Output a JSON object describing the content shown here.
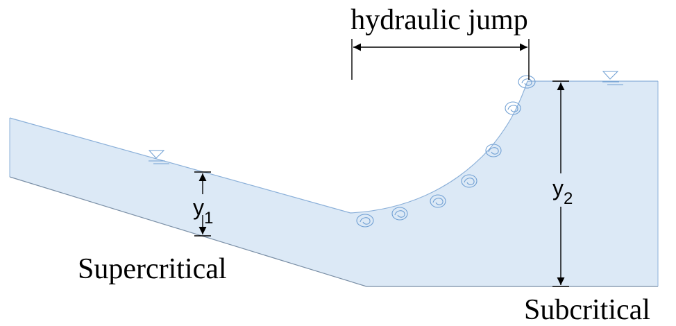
{
  "diagram": {
    "labels": {
      "hydraulic_jump": "hydraulic jump",
      "supercritical": "Supercritical",
      "subcritical": "Subcritical",
      "y1_base": "y",
      "y1_sub": "1",
      "y2_base": "y",
      "y2_sub": "2"
    },
    "colors": {
      "water_fill": "#dce9f6",
      "water_edge": "#8bb0d9",
      "line": "#000000",
      "symbol": "#6f9fd3"
    },
    "icons": {
      "water_surface_symbol": "inverted-triangle-water-level-icon",
      "roller_symbol": "roller-eddy-icon"
    }
  }
}
